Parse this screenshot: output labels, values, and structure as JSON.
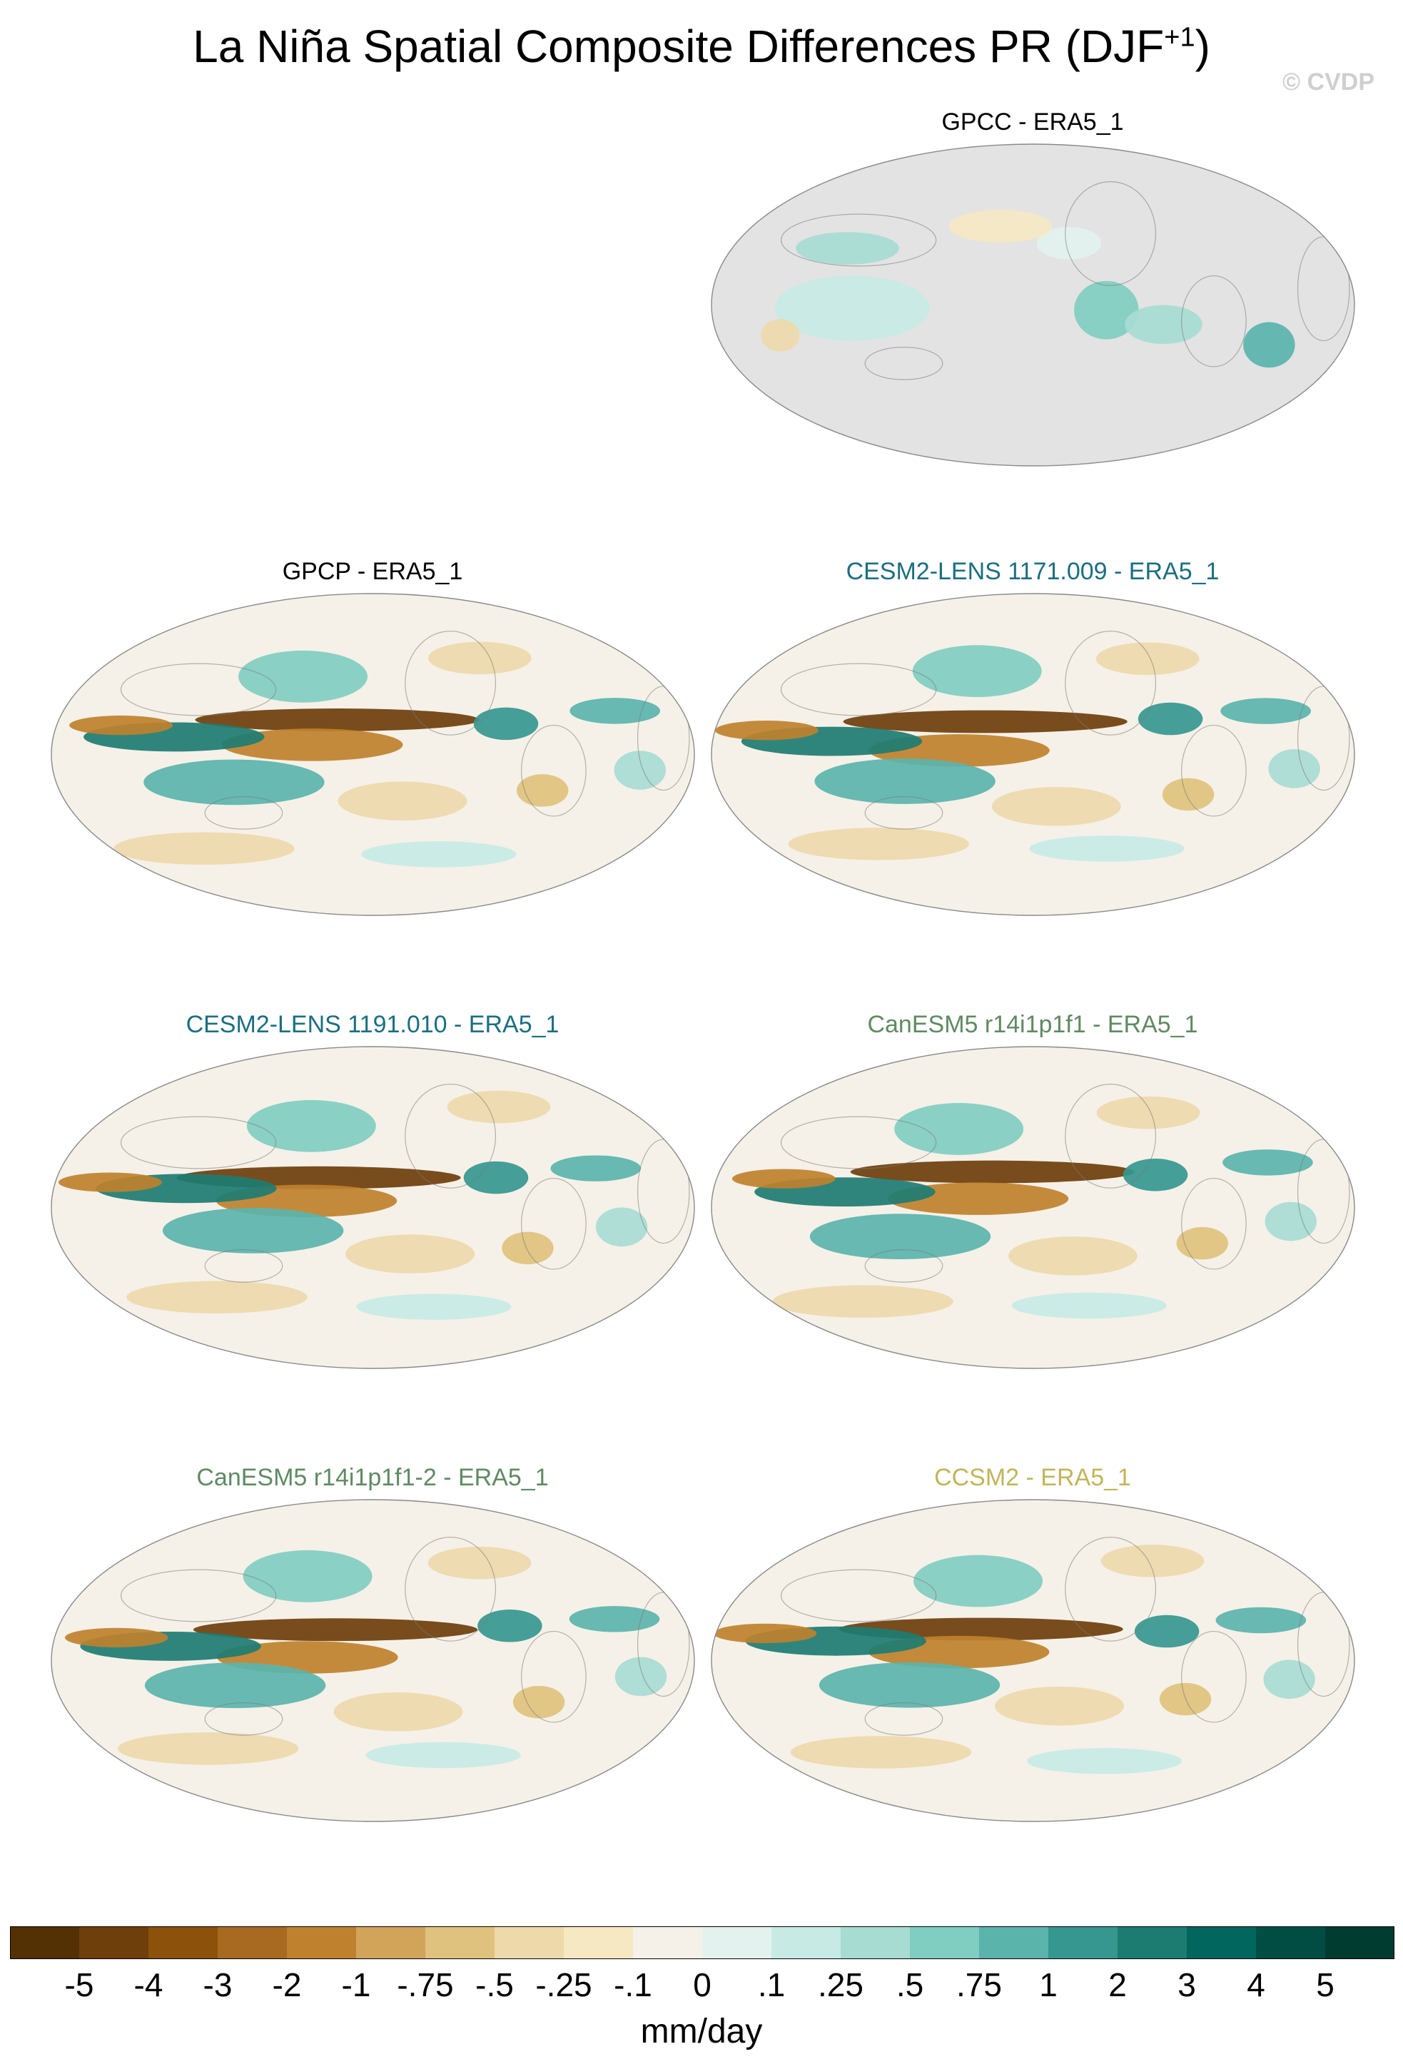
{
  "figure": {
    "title": "La Niña Spatial Composite Differences PR (DJF",
    "title_sup": "+1",
    "title_tail": ")",
    "watermark": "© CVDP"
  },
  "panels": [
    {
      "id": "gpcc",
      "title": "GPCC - ERA5_1",
      "title_color": "#000000",
      "coverage": "land-only"
    },
    {
      "id": "gpcp",
      "title": "GPCP - ERA5_1",
      "title_color": "#000000",
      "coverage": "global"
    },
    {
      "id": "cesm1",
      "title": "CESM2-LENS 1171.009 - ERA5_1",
      "title_color": "#1b6f80",
      "coverage": "global"
    },
    {
      "id": "cesm2",
      "title": "CESM2-LENS 1191.010 - ERA5_1",
      "title_color": "#1b6f80",
      "coverage": "global"
    },
    {
      "id": "can1",
      "title": "CanESM5 r14i1p1f1 - ERA5_1",
      "title_color": "#5f8a62",
      "coverage": "global"
    },
    {
      "id": "can2",
      "title": "CanESM5 r14i1p1f1-2 - ERA5_1",
      "title_color": "#5f8a62",
      "coverage": "global"
    },
    {
      "id": "ccsm",
      "title": "CCSM2 - ERA5_1",
      "title_color": "#c2b55a",
      "coverage": "global"
    }
  ],
  "colorbar": {
    "labels": [
      "-5",
      "-4",
      "-3",
      "-2",
      "-1",
      "-.75",
      "-.5",
      "-.25",
      "-.1",
      "0",
      ".1",
      ".25",
      ".5",
      ".75",
      "1",
      "2",
      "3",
      "4",
      "5"
    ],
    "colors": [
      "#543005",
      "#6e3e0b",
      "#8c510a",
      "#a86a20",
      "#bf812d",
      "#d2a45a",
      "#dfc27d",
      "#eed9ab",
      "#f6e8c3",
      "#f5f1e8",
      "#e3f2ef",
      "#c7eae5",
      "#a7dcd3",
      "#80cdc1",
      "#5ab4ac",
      "#35978f",
      "#1d7c72",
      "#01665e",
      "#014d44",
      "#003c30"
    ],
    "units": "mm/day"
  }
}
